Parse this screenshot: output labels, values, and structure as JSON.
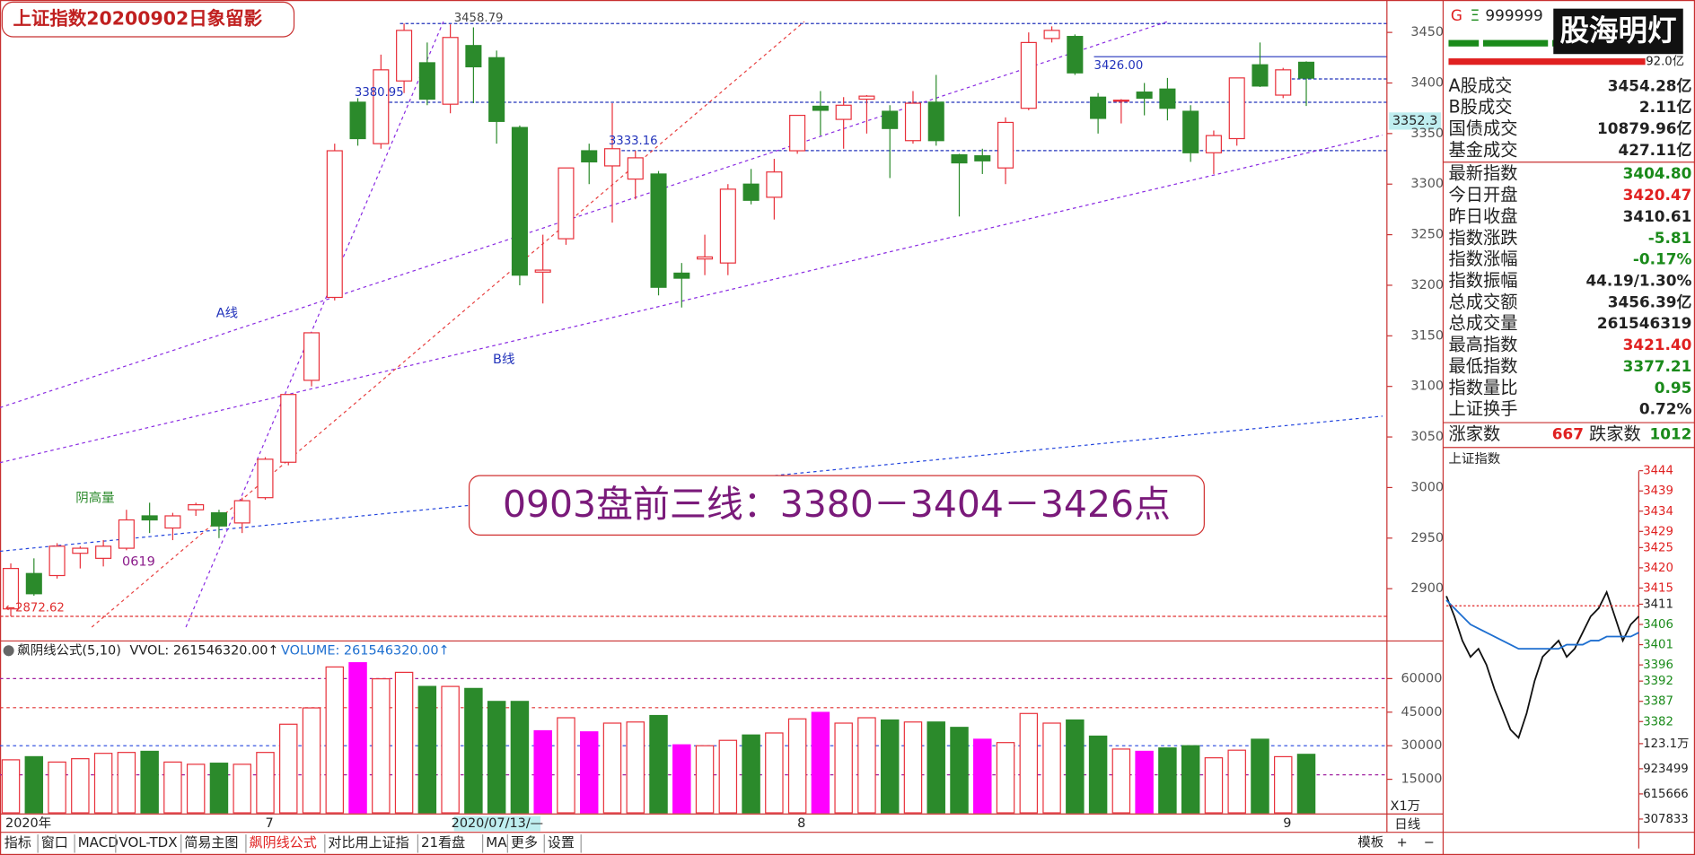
{
  "chart_data": [
    {
      "type": "candlestick",
      "title": "上证指数20200902日象留影",
      "categories": [
        "2020年",
        null,
        null,
        null,
        null,
        null,
        null,
        null,
        null,
        null,
        null,
        "7",
        null,
        null,
        null,
        null,
        null,
        null,
        null,
        null,
        null,
        null,
        null,
        null,
        null,
        null,
        null,
        null,
        null,
        null,
        null,
        null,
        null,
        null,
        "8",
        null,
        null,
        null,
        null,
        null,
        null,
        null,
        null,
        null,
        null,
        null,
        null,
        null,
        null,
        null,
        null,
        null,
        null,
        null,
        null,
        "9",
        null
      ],
      "cursor_label": "2020/07/13/—",
      "cursor_price": "3352.3",
      "open": [
        2880,
        2915,
        2913,
        2935,
        2930,
        2940,
        2972,
        2960,
        2978,
        2975,
        2965,
        2990,
        3025,
        3106,
        3188,
        3381,
        3340,
        3402,
        3420,
        3379,
        3437,
        3425,
        3356,
        3213,
        3246,
        3333,
        3318,
        3305,
        3310,
        3212,
        3226,
        3222,
        3300,
        3287,
        3333,
        3377,
        3364,
        3384,
        3372,
        3343,
        3381,
        3329,
        3328,
        3316,
        3375,
        3444,
        3446,
        3386,
        3382,
        3391,
        3394,
        3372,
        3331,
        3345,
        3418,
        3388,
        3420.47
      ],
      "close": [
        2920,
        2895,
        2942,
        2940,
        2942,
        2968,
        2968,
        2972,
        2983,
        2962,
        2987,
        3028,
        3092,
        3153,
        3333,
        3345,
        3413,
        3452,
        3384,
        3445,
        3416,
        3362,
        3210,
        3215,
        3316,
        3322,
        3335,
        3326,
        3198,
        3207,
        3228,
        3295,
        3284,
        3312,
        3368,
        3373,
        3378,
        3387,
        3355,
        3380,
        3343,
        3321,
        3323,
        3361,
        3440,
        3452,
        3410,
        3365,
        3383,
        3385,
        3375,
        3331,
        3348,
        3405,
        3397,
        3413,
        3404.8
      ],
      "high": [
        2925,
        2930,
        2945,
        2942,
        2948,
        2978,
        2985,
        2975,
        2985,
        2978,
        2990,
        3030,
        3092,
        3153,
        3340,
        3385,
        3428,
        3458.79,
        3440,
        3458,
        3455,
        3432,
        3358,
        3250,
        3316,
        3340,
        3380,
        3333,
        3313,
        3222,
        3250,
        3300,
        3315,
        3325,
        3368,
        3392,
        3386,
        3388,
        3378,
        3392,
        3408,
        3330,
        3335,
        3366,
        3450,
        3456,
        3448,
        3390,
        3384,
        3400,
        3405,
        3378,
        3353,
        3405,
        3440,
        3415,
        3421.4
      ],
      "low": [
        2872.62,
        2893,
        2910,
        2920,
        2922,
        2938,
        2955,
        2948,
        2972,
        2950,
        2955,
        2988,
        3022,
        3100,
        3185,
        3338,
        3335,
        3390,
        3378,
        3370,
        3380,
        3340,
        3200,
        3182,
        3240,
        3300,
        3262,
        3285,
        3190,
        3178,
        3210,
        3210,
        3280,
        3265,
        3330,
        3348,
        3335,
        3350,
        3306,
        3340,
        3338,
        3268,
        3310,
        3300,
        3373,
        3440,
        3408,
        3350,
        3360,
        3368,
        3363,
        3322,
        3310,
        3338,
        3396,
        3385,
        3377.21
      ],
      "up_color": "#e8303a",
      "down_color": "#2b8a2b",
      "ylim": [
        2851.5,
        3476.7
      ],
      "yticks": [
        2900,
        2950,
        3000,
        3050,
        3100,
        3150,
        3200,
        3250,
        3300,
        3350,
        3400,
        3450
      ],
      "levels": [
        {
          "value": 3458.79,
          "label": "3458.79",
          "color": "#2233bb"
        },
        {
          "value": 3380.95,
          "label": "3380.95",
          "color": "#2233bb"
        },
        {
          "value": 3333.16,
          "label": "3333.16",
          "color": "#2233bb"
        },
        {
          "value": 3426,
          "label": "3426.00",
          "color": "#2233bb"
        },
        {
          "value": 3404,
          "color": "#2233bb"
        },
        {
          "value": 2872.62,
          "label": "←2872.62",
          "color": "#e03030"
        }
      ],
      "trend_lines": [
        {
          "from": [
            -0.47,
            3079
          ],
          "to": [
            50,
            3460.7
          ],
          "color": "#8a2be2"
        },
        {
          "from": [
            -0.47,
            3024.6
          ],
          "to": [
            59.3,
            3348.5
          ],
          "color": "#8a2be2"
        },
        {
          "from": [
            -0.47,
            2937
          ],
          "to": [
            59.3,
            3070.6
          ],
          "color": "#2244dd"
        },
        {
          "from": [
            3.5,
            2862
          ],
          "to": [
            34.3,
            3460.7
          ],
          "color": "#e84040"
        },
        {
          "from": [
            7.57,
            2862
          ],
          "to": [
            18.7,
            3460.7
          ],
          "color": "#8a2be2"
        }
      ],
      "annotations": [
        {
          "text": "A线",
          "color": "#2233bb"
        },
        {
          "text": "B线",
          "color": "#2233bb"
        },
        {
          "text": "阴高量",
          "color": "#2b8a2b"
        },
        {
          "text": "0619",
          "color": "#8a1a8a"
        }
      ],
      "headline": "0903盘前三线：3380－3404－3426点"
    },
    {
      "type": "bar",
      "title": "飙阴线公式(5,10)",
      "indicators": [
        {
          "label": "VVOL: 261546320.00↑",
          "color": "#222"
        },
        {
          "label": "VOLUME: 261546320.00↑",
          "color": "#1e6fd0"
        }
      ],
      "unit_label": "X1万",
      "values": [
        23700,
        25100,
        22700,
        24200,
        26600,
        27000,
        27500,
        22700,
        21700,
        22200,
        21700,
        27000,
        39600,
        46900,
        65200,
        67100,
        59900,
        62800,
        56500,
        56500,
        55600,
        49800,
        49800,
        36700,
        42500,
        36200,
        40100,
        40600,
        43500,
        30400,
        30000,
        32400,
        34800,
        35700,
        42000,
        44900,
        40100,
        42500,
        41500,
        40600,
        40600,
        38200,
        32900,
        31400,
        44400,
        40100,
        41500,
        34300,
        28500,
        27500,
        29000,
        30000,
        24600,
        28000,
        32900,
        25100,
        26155
      ],
      "colors": [
        "#e8303a",
        "#2b8a2b",
        "#e8303a",
        "#e8303a",
        "#e8303a",
        "#e8303a",
        "#2b8a2b",
        "#e8303a",
        "#e8303a",
        "#2b8a2b",
        "#e8303a",
        "#e8303a",
        "#e8303a",
        "#e8303a",
        "#e8303a",
        "#ff00ff",
        "#e8303a",
        "#e8303a",
        "#2b8a2b",
        "#e8303a",
        "#2b8a2b",
        "#2b8a2b",
        "#2b8a2b",
        "#ff00ff",
        "#e8303a",
        "#ff00ff",
        "#e8303a",
        "#e8303a",
        "#2b8a2b",
        "#ff00ff",
        "#e8303a",
        "#e8303a",
        "#2b8a2b",
        "#e8303a",
        "#e8303a",
        "#ff00ff",
        "#e8303a",
        "#e8303a",
        "#2b8a2b",
        "#e8303a",
        "#2b8a2b",
        "#2b8a2b",
        "#ff00ff",
        "#e8303a",
        "#e8303a",
        "#e8303a",
        "#2b8a2b",
        "#2b8a2b",
        "#e8303a",
        "#ff00ff",
        "#2b8a2b",
        "#2b8a2b",
        "#e8303a",
        "#e8303a",
        "#2b8a2b",
        "#e8303a",
        "#2b8a2b"
      ],
      "hollow_color": "#e8303a",
      "ylim": [
        0,
        68600
      ],
      "yticks": [
        15000,
        30000,
        45000,
        60000
      ],
      "ref_lines": [
        {
          "value": 60000,
          "color": "#a020a0"
        },
        {
          "value": 47000,
          "color": "#e03030"
        },
        {
          "value": 30000,
          "color": "#2244dd"
        },
        {
          "value": 17000,
          "color": "#a020a0"
        }
      ]
    },
    {
      "type": "line",
      "title": "上证指数",
      "series": [
        {
          "color": "#111",
          "values": [
            3413,
            3408,
            3402,
            3398,
            3400,
            3396,
            3390,
            3385,
            3380,
            3378,
            3384,
            3392,
            3398,
            3400,
            3402,
            3398,
            3400,
            3404,
            3408,
            3410,
            3414,
            3408,
            3402,
            3406,
            3408
          ]
        },
        {
          "color": "#1e6fd0",
          "values": [
            3412,
            3410,
            3408,
            3406,
            3405,
            3404,
            3403,
            3402,
            3401,
            3400,
            3400,
            3400,
            3400,
            3400,
            3400,
            3401,
            3401,
            3401,
            3402,
            3402,
            3403,
            3403,
            3403,
            3403,
            3404
          ]
        }
      ],
      "ylim": [
        3376,
        3446
      ],
      "yticks": [
        3444,
        3439,
        3434,
        3429,
        3425,
        3420,
        3415,
        3411,
        3406,
        3401,
        3396,
        3392,
        3387,
        3382
      ],
      "y2lim": [
        0,
        1231000
      ],
      "y2ticks": [
        {
          "value": 1231000,
          "label": "123.1万"
        },
        923499,
        615666,
        307833
      ]
    }
  ],
  "quote_panel": {
    "code_prefix": "G",
    "code_icon": "Ξ",
    "code": "999999",
    "logo": "股海明灯",
    "top_value": "92.0亿",
    "rows": [
      {
        "label": "A股成交",
        "value": "3454.28亿"
      },
      {
        "label": "B股成交",
        "value": "2.11亿"
      },
      {
        "label": "国债成交",
        "value": "10879.96亿"
      },
      {
        "label": "基金成交",
        "value": "427.11亿"
      },
      {
        "label": "最新指数",
        "value": "3404.80",
        "color": "#1a8a1a"
      },
      {
        "label": "今日开盘",
        "value": "3420.47",
        "color": "#e02020"
      },
      {
        "label": "昨日收盘",
        "value": "3410.61"
      },
      {
        "label": "指数涨跌",
        "value": "-5.81",
        "color": "#1a8a1a"
      },
      {
        "label": "指数涨幅",
        "value": "-0.17%",
        "color": "#1a8a1a"
      },
      {
        "label": "指数振幅",
        "value": "44.19/1.30%"
      },
      {
        "label": "总成交额",
        "value": "3456.39亿"
      },
      {
        "label": "总成交量",
        "value": "261546319"
      },
      {
        "label": "最高指数",
        "value": "3421.40",
        "color": "#e02020"
      },
      {
        "label": "最低指数",
        "value": "3377.21",
        "color": "#1a8a1a"
      },
      {
        "label": "指数量比",
        "value": "0.95",
        "color": "#1a8a1a"
      },
      {
        "label": "上证换手",
        "value": "0.72%"
      }
    ],
    "rise_label": "涨家数",
    "rise": 667,
    "fall_label": "跌家数",
    "fall": 1012
  },
  "toolbar": {
    "tabs": [
      "指标",
      "窗口",
      "MACD",
      "VOL-TDX",
      "简易主图",
      "飙阴线公式",
      "对比用上证指",
      "21看盘",
      "MA",
      "更多",
      "设置"
    ],
    "right": "模板",
    "period": "日线",
    "zoom": [
      "+",
      "−"
    ]
  }
}
